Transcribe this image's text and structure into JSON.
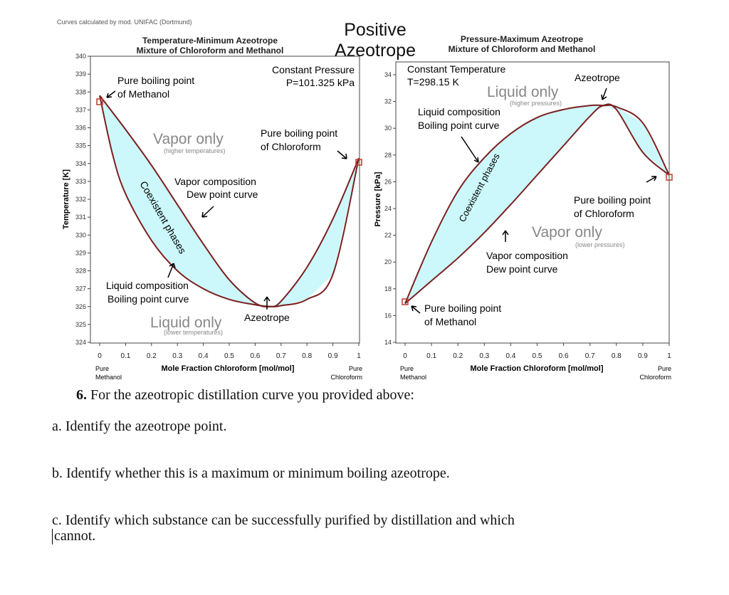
{
  "credit": "Curves calculated by mod. UNIFAC (Dortmund)",
  "center_title": {
    "line1": "Positive",
    "line2": "Azeotrope"
  },
  "left_chart_title": {
    "line1": "Temperature-Minimum Azeotrope",
    "line2": "Mixture of Chloroform and Methanol"
  },
  "right_chart_title": {
    "line1": "Pressure-Maximum Azeotrope",
    "line2": "Mixture of Chloroform and Methanol"
  },
  "question": {
    "number": "6.",
    "prompt": "For the azeotropic distillation curve you provided above:",
    "a": "a. Identify the azeotrope point.",
    "b": "b. Identify whether this is a maximum or minimum boiling azeotrope.",
    "c_line1": "c. Identify which substance can be successfully purified by distillation and which",
    "c_line2": "cannot."
  },
  "colors": {
    "fill": "#ccf8fb",
    "curve": "#7a1f1f",
    "marker": "#c0392b",
    "axis": "#333333"
  },
  "chart_data": [
    {
      "type": "line",
      "title": "Temperature-Minimum Azeotrope Mixture of Chloroform and Methanol",
      "xlabel": "Mole Fraction Chloroform [mol/mol]",
      "ylabel": "Temperature [K]",
      "xlim": [
        0,
        1
      ],
      "ylim": [
        324,
        340
      ],
      "x_ticks": [
        "0",
        "0.1",
        "0.2",
        "0.3",
        "0.4",
        "0.5",
        "0.6",
        "0.7",
        "0.8",
        "0.9",
        "1"
      ],
      "y_ticks": [
        "324",
        "325",
        "326",
        "327",
        "328",
        "329",
        "330",
        "331",
        "332",
        "333",
        "334",
        "335",
        "336",
        "337",
        "338",
        "339",
        "340"
      ],
      "x_end_labels": {
        "left": [
          "Pure",
          "Methanol"
        ],
        "right": [
          "Pure",
          "Chloroform"
        ]
      },
      "series": [
        {
          "name": "Vapor composition (Dew point curve)",
          "x": [
            0,
            0.1,
            0.2,
            0.3,
            0.4,
            0.5,
            0.6,
            0.66,
            0.7,
            0.8,
            0.9,
            1
          ],
          "y": [
            337.8,
            335.9,
            333.9,
            331.7,
            329.5,
            327.5,
            326.2,
            326.0,
            326.3,
            328.2,
            330.9,
            334.3
          ]
        },
        {
          "name": "Liquid composition (Boiling point curve)",
          "x": [
            0,
            0.05,
            0.1,
            0.2,
            0.3,
            0.4,
            0.5,
            0.6,
            0.66,
            0.7,
            0.8,
            0.9,
            1
          ],
          "y": [
            337.8,
            334.5,
            332.3,
            329.7,
            328.0,
            327.0,
            326.4,
            326.1,
            326.0,
            326.05,
            326.4,
            327.8,
            334.3
          ]
        }
      ],
      "annotations": [
        {
          "text": "Constant Pressure P=101.325 kPa"
        },
        {
          "text": "Pure boiling point of Methanol"
        },
        {
          "text": "Pure boiling point of Chloroform"
        },
        {
          "text": "Vapor only",
          "sub": "(higher temperatures)"
        },
        {
          "text": "Vapor composition Dew point curve"
        },
        {
          "text": "Coexistent phases"
        },
        {
          "text": "Liquid composition Boiling point curve"
        },
        {
          "text": "Liquid only",
          "sub": "(lower temperatures)"
        },
        {
          "text": "Azeotrope",
          "x": 0.66,
          "y": 326.0
        }
      ]
    },
    {
      "type": "line",
      "title": "Pressure-Maximum Azeotrope Mixture of Chloroform and Methanol",
      "xlabel": "Mole Fraction Chloroform [mol/mol]",
      "ylabel": "Pressure [kPa]",
      "xlim": [
        0,
        1
      ],
      "ylim": [
        14,
        34
      ],
      "x_ticks": [
        "0",
        "0.1",
        "0.2",
        "0.3",
        "0.4",
        "0.5",
        "0.6",
        "0.7",
        "0.8",
        "0.9",
        "1"
      ],
      "y_ticks": [
        "14",
        "16",
        "18",
        "20",
        "22",
        "24",
        "26",
        "28",
        "30",
        "32",
        "34"
      ],
      "x_end_labels": {
        "left": [
          "Pure",
          "Methanol"
        ],
        "right": [
          "Pure",
          "Chloroform"
        ]
      },
      "series": [
        {
          "name": "Liquid composition (Boiling point curve)",
          "x": [
            0,
            0.1,
            0.2,
            0.3,
            0.4,
            0.5,
            0.6,
            0.7,
            0.75,
            0.8,
            0.9,
            1
          ],
          "y": [
            16.9,
            21.5,
            25.3,
            27.8,
            29.6,
            30.8,
            31.4,
            31.7,
            31.7,
            31.6,
            30.4,
            26.5
          ]
        },
        {
          "name": "Vapor composition (Dew point curve)",
          "x": [
            0,
            0.1,
            0.2,
            0.3,
            0.4,
            0.5,
            0.6,
            0.7,
            0.75,
            0.8,
            0.9,
            1
          ],
          "y": [
            16.9,
            18.6,
            20.3,
            22.2,
            24.3,
            26.5,
            28.7,
            30.9,
            31.7,
            31.4,
            28.2,
            26.5
          ]
        }
      ],
      "annotations": [
        {
          "text": "Constant Temperature T=298.15 K"
        },
        {
          "text": "Azeotrope",
          "x": 0.75,
          "y": 31.7
        },
        {
          "text": "Liquid only",
          "sub": "(higher pressures)"
        },
        {
          "text": "Liquid composition Boiling point curve"
        },
        {
          "text": "Coexistent phases"
        },
        {
          "text": "Pure boiling point of Chloroform"
        },
        {
          "text": "Vapor only",
          "sub": "(lower pressures)"
        },
        {
          "text": "Vapor composition Dew point curve"
        },
        {
          "text": "Pure boiling point of Methanol"
        }
      ]
    }
  ],
  "labels": {
    "left": {
      "constant1": "Constant Pressure",
      "constant2": "P=101.325 kPa",
      "pbm1": "Pure boiling point",
      "pbm2": "of Methanol",
      "pbc1": "Pure boiling point",
      "pbc2": "of Chloroform",
      "vapor_only": "Vapor only",
      "vapor_only_sub": "(higher temperatures)",
      "vc1": "Vapor composition",
      "vc2": "Dew point curve",
      "coexist": "Coexistent phases",
      "lc1": "Liquid composition",
      "lc2": "Boiling point curve",
      "liquid_only": "Liquid only",
      "liquid_only_sub": "(lower temperatures)",
      "azeo": "Azeotrope",
      "ylabel": "Temperature [K]",
      "xlabel": "Mole Fraction Chloroform [mol/mol]",
      "pure": "Pure",
      "methanol": "Methanol",
      "chloroform": "Chloroform"
    },
    "right": {
      "constant1": "Constant Temperature",
      "constant2": "T=298.15 K",
      "azeo": "Azeotrope",
      "liquid_only": "Liquid only",
      "liquid_only_sub": "(higher pressures)",
      "lc1": "Liquid composition",
      "lc2": "Boiling point curve",
      "coexist": "Coexistent phases",
      "pbc1": "Pure boiling point",
      "pbc2": "of Chloroform",
      "vapor_only": "Vapor only",
      "vapor_only_sub": "(lower pressures)",
      "vc1": "Vapor composition",
      "vc2": "Dew point curve",
      "pbm1": "Pure boiling point",
      "pbm2": "of Methanol",
      "ylabel": "Pressure [kPa]",
      "xlabel": "Mole Fraction Chloroform [mol/mol]",
      "pure": "Pure",
      "methanol": "Methanol",
      "chloroform": "Chloroform"
    }
  }
}
